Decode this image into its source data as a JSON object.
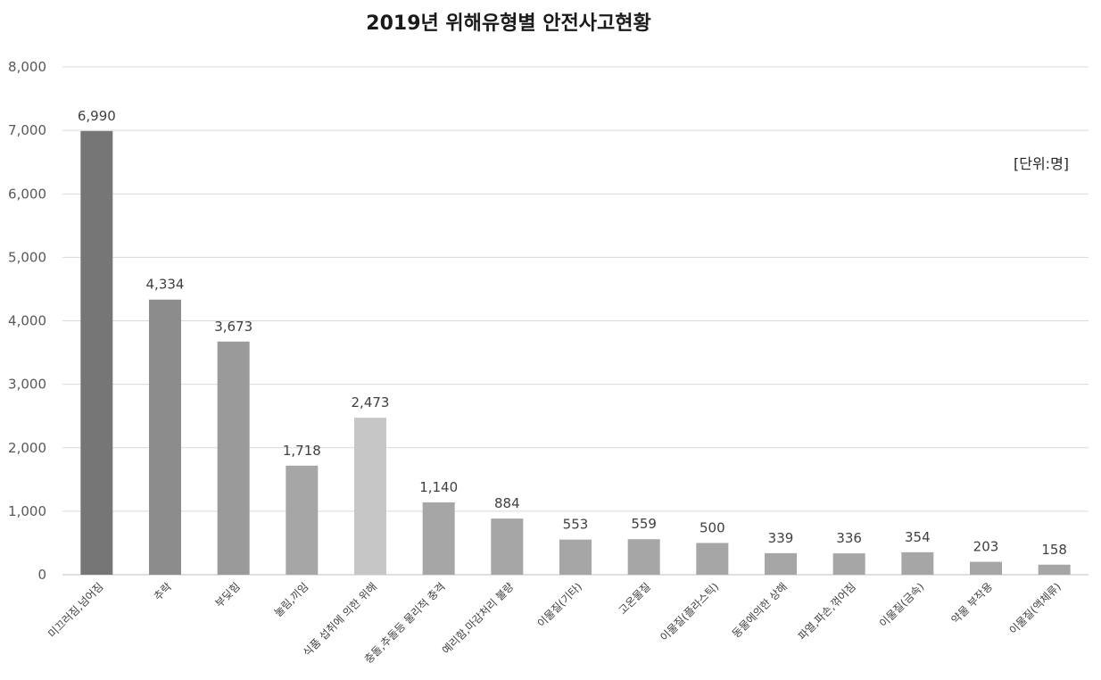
{
  "chart_data": {
    "type": "bar",
    "title": "2019년 위해유형별 안전사고현황",
    "unit_note": "[단위:명]",
    "categories": [
      "미끄러짐,넘어짐",
      "추락",
      "부딪힘",
      "눌림,끼임",
      "식품 섭취에 의한 위해",
      "충돌,추돌등 물리적 충격",
      "예리함,마감처리 불량",
      "이물질(기타)",
      "고온물질",
      "이물질(플라스틱)",
      "동물에의한 상해",
      "파열,파손,꺾어짐",
      "이물질(금속)",
      "약물 부작용",
      "이물질(액체류)"
    ],
    "values": [
      6990,
      4334,
      3673,
      1718,
      2473,
      1140,
      884,
      553,
      559,
      500,
      339,
      336,
      354,
      203,
      158
    ],
    "value_labels": [
      "6,990",
      "4,334",
      "3,673",
      "1,718",
      "2,473",
      "1,140",
      "884",
      "553",
      "559",
      "500",
      "339",
      "336",
      "354",
      "203",
      "158"
    ],
    "bar_colors": [
      "#767676",
      "#8c8c8c",
      "#9a9a9a",
      "#a6a6a6",
      "#c6c6c6",
      "#a6a6a6",
      "#a6a6a6",
      "#a6a6a6",
      "#a6a6a6",
      "#a6a6a6",
      "#a6a6a6",
      "#a6a6a6",
      "#a6a6a6",
      "#a6a6a6",
      "#a6a6a6"
    ],
    "ylim": [
      0,
      8000
    ],
    "yticks": [
      0,
      1000,
      2000,
      3000,
      4000,
      5000,
      6000,
      7000,
      8000
    ],
    "ytick_labels": [
      "0",
      "1,000",
      "2,000",
      "3,000",
      "4,000",
      "5,000",
      "6,000",
      "7,000",
      "8,000"
    ],
    "grid": true,
    "gridline_color": "#d9d9d9",
    "xlabel": "",
    "ylabel": ""
  }
}
